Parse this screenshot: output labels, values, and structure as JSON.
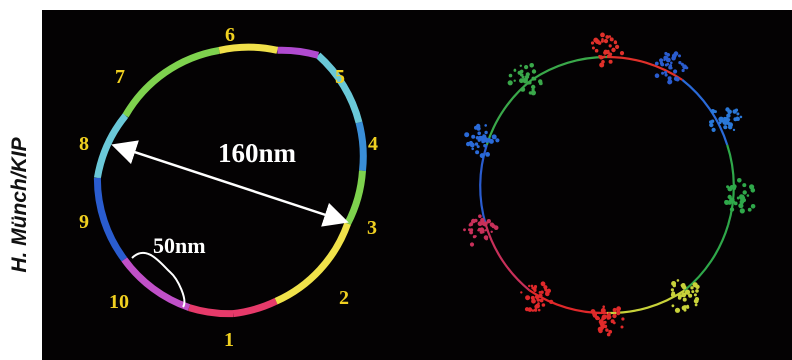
{
  "credit": "H. Münch/KIP",
  "left_diagram": {
    "segment_labels": [
      "1",
      "2",
      "3",
      "4",
      "5",
      "6",
      "7",
      "8",
      "9",
      "10"
    ],
    "diameter_label": "160nm",
    "arc_label": "50nm",
    "label_color": "#f0d020"
  },
  "right_diagram": {
    "colors": [
      "#e02a2a",
      "#c8d23a",
      "#2fa84a",
      "#2a78d8",
      "#2a5ccf",
      "#e0302a",
      "#3aa84a",
      "#2a6ad8",
      "#c8305a",
      "#e0282a"
    ]
  }
}
